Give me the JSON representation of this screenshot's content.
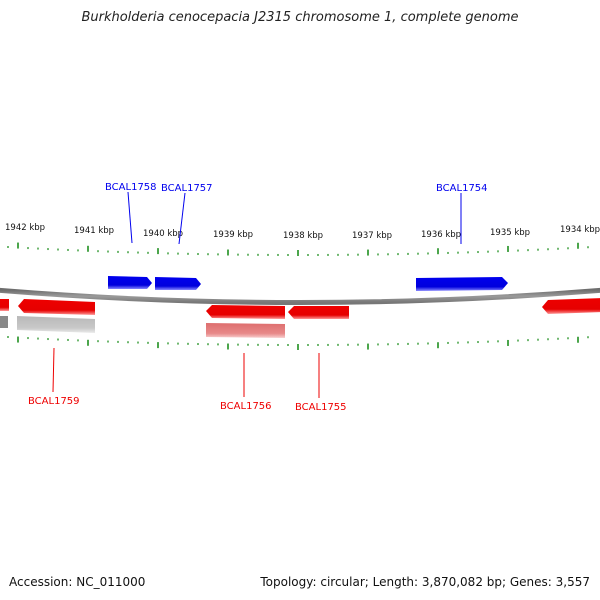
{
  "title": "Burkholderia cenocepacia J2315 chromosome 1, complete genome",
  "footer": {
    "accession": "Accession: NC_011000",
    "summary": "Topology: circular; Length: 3,870,082 bp; Genes: 3,557"
  },
  "colors": {
    "forward_gene": "#0000ee",
    "reverse_gene": "#ee0000",
    "reverse_pseudo": "#e88a8a",
    "grey_feature": "#c4c4c4",
    "backbone": "#888888",
    "tick": "#118811"
  },
  "scale": {
    "unit": "kbp",
    "labels": [
      "1942 kbp",
      "1941 kbp",
      "1940 kbp",
      "1939 kbp",
      "1938 kbp",
      "1937 kbp",
      "1936 kbp",
      "1935 kbp",
      "1934 kbp"
    ]
  },
  "genes": [
    {
      "id": "BCAL1758",
      "strand": "+",
      "label": "BCAL1758"
    },
    {
      "id": "BCAL1757",
      "strand": "+",
      "label": "BCAL1757"
    },
    {
      "id": "BCAL1754",
      "strand": "+",
      "label": "BCAL1754"
    },
    {
      "id": "BCAL1759",
      "strand": "-",
      "label": "BCAL1759"
    },
    {
      "id": "BCAL1756",
      "strand": "-",
      "label": "BCAL1756"
    },
    {
      "id": "BCAL1755",
      "strand": "-",
      "label": "BCAL1755"
    }
  ]
}
